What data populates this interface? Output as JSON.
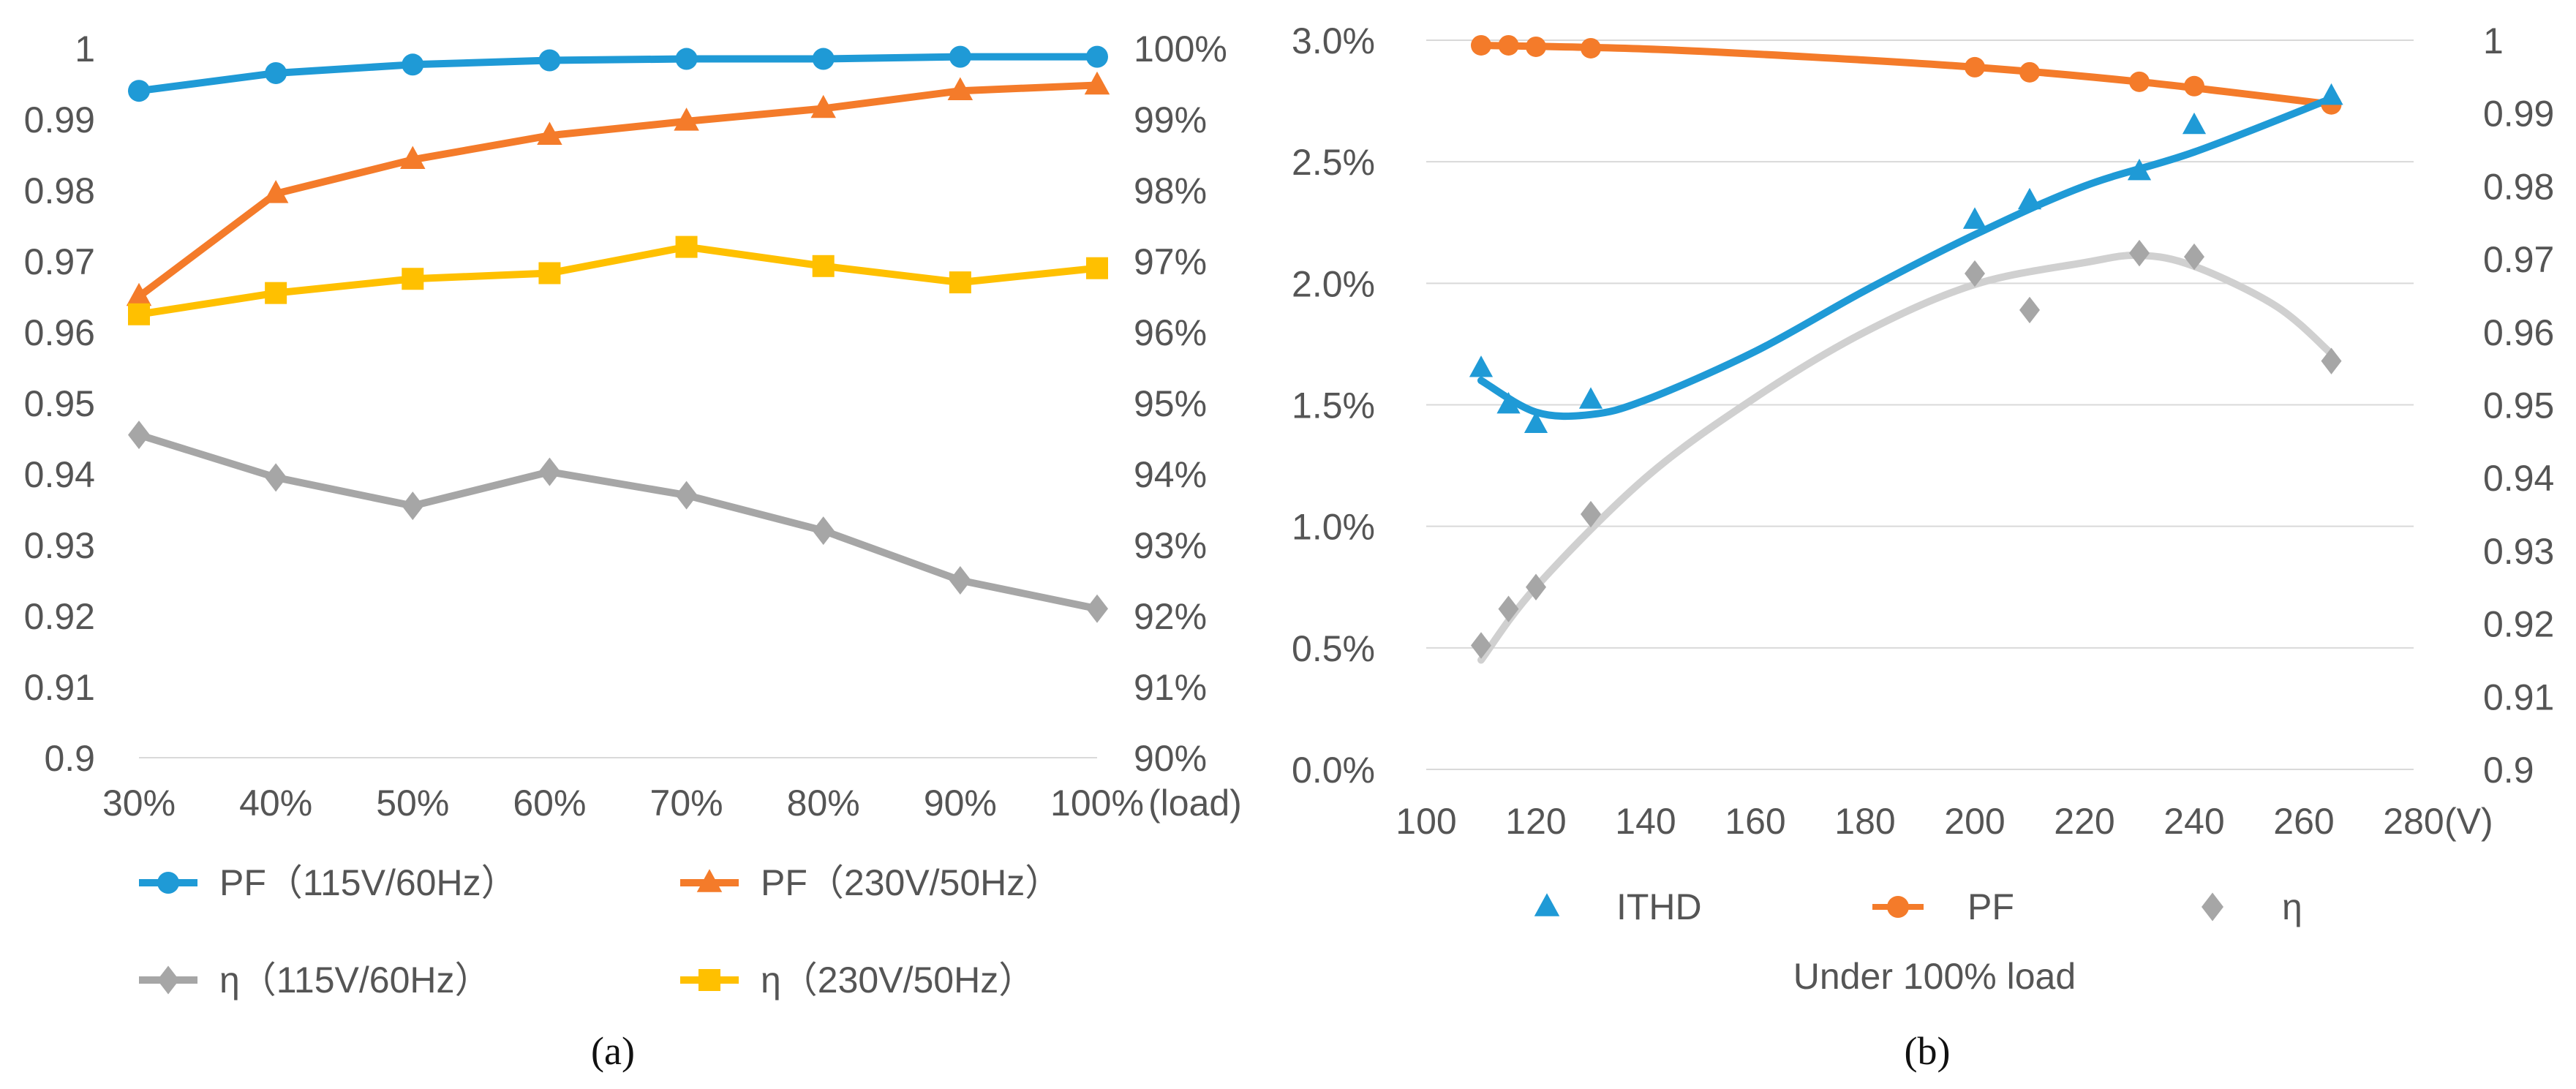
{
  "chart_data": [
    {
      "type": "line",
      "panel": "a",
      "caption": "(a)",
      "x_categories": [
        "30%",
        "40%",
        "50%",
        "60%",
        "70%",
        "80%",
        "90%",
        "100%"
      ],
      "x_unit_label": "(load)",
      "ylim_left": [
        0.9,
        1.0
      ],
      "yticks_left": [
        "0.9",
        "0.91",
        "0.92",
        "0.93",
        "0.94",
        "0.95",
        "0.96",
        "0.97",
        "0.98",
        "0.99",
        "1"
      ],
      "ylim_right": [
        0.9,
        1.0
      ],
      "yticks_right": [
        "90%",
        "91%",
        "92%",
        "93%",
        "94%",
        "95%",
        "96%",
        "97%",
        "98%",
        "99%",
        "100%"
      ],
      "grid": false,
      "legend_position": "bottom",
      "series": [
        {
          "name": "PF（115V/60Hz）",
          "axis": "left",
          "marker": "circle",
          "color": "#1f9ad6",
          "values": [
            0.994,
            0.9965,
            0.9977,
            0.9983,
            0.9985,
            0.9985,
            0.9988,
            0.9988
          ]
        },
        {
          "name": "PF（230V/50Hz）",
          "axis": "left",
          "marker": "triangle",
          "color": "#f47b2a",
          "values": [
            0.965,
            0.9795,
            0.9843,
            0.9877,
            0.9897,
            0.9915,
            0.994,
            0.9948
          ]
        },
        {
          "name": "η（115V/60Hz）",
          "axis": "right",
          "marker": "diamond",
          "color": "#a6a6a6",
          "values": [
            0.9455,
            0.9395,
            0.9355,
            0.9403,
            0.937,
            0.932,
            0.925,
            0.921
          ]
        },
        {
          "name": "η（230V/50Hz）",
          "axis": "right",
          "marker": "square",
          "color": "#ffc000",
          "values": [
            0.9625,
            0.9655,
            0.9675,
            0.9683,
            0.972,
            0.9693,
            0.967,
            0.969
          ]
        }
      ]
    },
    {
      "type": "scatter",
      "panel": "b",
      "caption": "(b)",
      "xlim": [
        100,
        280
      ],
      "xticks": [
        "100",
        "120",
        "140",
        "160",
        "180",
        "200",
        "220",
        "240",
        "260",
        "280"
      ],
      "x_unit_label": "(V)",
      "xlabel": "Under 100% load",
      "ylim_left": [
        0.0,
        3.0
      ],
      "yticks_left": [
        "0.0%",
        "0.5%",
        "1.0%",
        "1.5%",
        "2.0%",
        "2.5%",
        "3.0%"
      ],
      "ylim_right": [
        0.9,
        1.0
      ],
      "yticks_right": [
        "0.9",
        "0.91",
        "0.92",
        "0.93",
        "0.94",
        "0.95",
        "0.96",
        "0.97",
        "0.98",
        "0.99",
        "1"
      ],
      "grid": true,
      "legend_position": "bottom",
      "series": [
        {
          "name": "ITHD",
          "axis": "left",
          "marker": "triangle",
          "color": "#1f9ad6",
          "x": [
            110,
            115,
            120,
            130,
            200,
            210,
            230,
            240,
            265
          ],
          "values": [
            1.65,
            1.5,
            1.42,
            1.52,
            2.26,
            2.34,
            2.46,
            2.65,
            2.77
          ],
          "trend": [
            [
              110,
              1.6
            ],
            [
              120,
              1.47
            ],
            [
              130,
              1.46
            ],
            [
              140,
              1.52
            ],
            [
              160,
              1.72
            ],
            [
              180,
              1.97
            ],
            [
              200,
              2.2
            ],
            [
              220,
              2.4
            ],
            [
              240,
              2.54
            ],
            [
              265,
              2.76
            ]
          ]
        },
        {
          "name": "PF",
          "axis": "right",
          "marker": "circle",
          "color": "#f47b2a",
          "x": [
            110,
            115,
            120,
            130,
            200,
            210,
            230,
            240,
            265
          ],
          "values": [
            0.9993,
            0.9993,
            0.9991,
            0.9989,
            0.9963,
            0.9956,
            0.9943,
            0.9937,
            0.9912
          ],
          "trend": [
            [
              110,
              0.9993
            ],
            [
              140,
              0.9988
            ],
            [
              170,
              0.9977
            ],
            [
              200,
              0.9963
            ],
            [
              230,
              0.9943
            ],
            [
              265,
              0.9912
            ]
          ]
        },
        {
          "name": "η",
          "axis": "right",
          "marker": "diamond",
          "color": "#a6a6a6",
          "x": [
            110,
            115,
            120,
            130,
            200,
            210,
            230,
            240,
            265
          ],
          "values": [
            0.917,
            0.922,
            0.925,
            0.935,
            0.968,
            0.963,
            0.9708,
            0.9703,
            0.956
          ],
          "trend": [
            [
              110,
              0.915
            ],
            [
              120,
              0.925
            ],
            [
              140,
              0.94
            ],
            [
              160,
              0.951
            ],
            [
              180,
              0.96
            ],
            [
              200,
              0.9665
            ],
            [
              220,
              0.9695
            ],
            [
              230,
              0.9705
            ],
            [
              240,
              0.969
            ],
            [
              255,
              0.9635
            ],
            [
              265,
              0.957
            ]
          ]
        }
      ]
    }
  ]
}
